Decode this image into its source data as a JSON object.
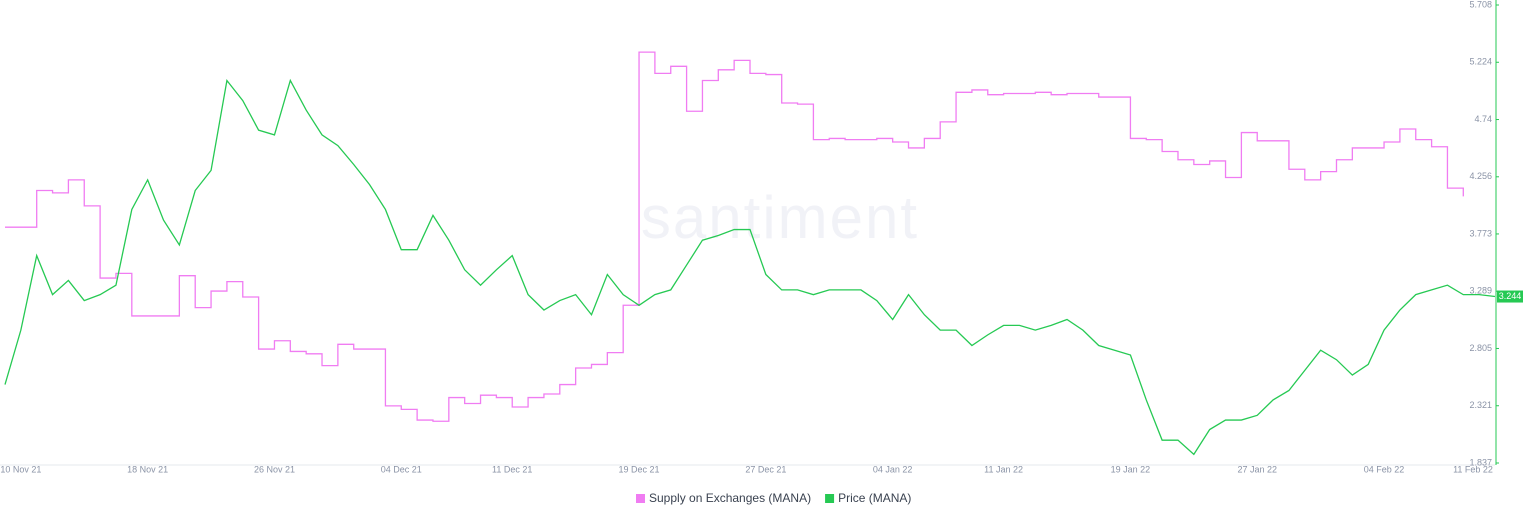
{
  "chart_data": {
    "type": "line",
    "watermark": "santiment",
    "x": [
      "09 Nov 21",
      "10 Nov 21",
      "11 Nov 21",
      "12 Nov 21",
      "13 Nov 21",
      "14 Nov 21",
      "15 Nov 21",
      "16 Nov 21",
      "17 Nov 21",
      "18 Nov 21",
      "19 Nov 21",
      "20 Nov 21",
      "21 Nov 21",
      "22 Nov 21",
      "23 Nov 21",
      "24 Nov 21",
      "25 Nov 21",
      "26 Nov 21",
      "27 Nov 21",
      "28 Nov 21",
      "29 Nov 21",
      "30 Nov 21",
      "01 Dec 21",
      "02 Dec 21",
      "03 Dec 21",
      "04 Dec 21",
      "05 Dec 21",
      "06 Dec 21",
      "07 Dec 21",
      "08 Dec 21",
      "09 Dec 21",
      "10 Dec 21",
      "11 Dec 21",
      "12 Dec 21",
      "13 Dec 21",
      "14 Dec 21",
      "15 Dec 21",
      "16 Dec 21",
      "17 Dec 21",
      "18 Dec 21",
      "19 Dec 21",
      "20 Dec 21",
      "21 Dec 21",
      "22 Dec 21",
      "23 Dec 21",
      "24 Dec 21",
      "25 Dec 21",
      "26 Dec 21",
      "27 Dec 21",
      "28 Dec 21",
      "29 Dec 21",
      "30 Dec 21",
      "31 Dec 21",
      "01 Jan 22",
      "02 Jan 22",
      "03 Jan 22",
      "04 Jan 22",
      "05 Jan 22",
      "06 Jan 22",
      "07 Jan 22",
      "08 Jan 22",
      "09 Jan 22",
      "10 Jan 22",
      "11 Jan 22",
      "12 Jan 22",
      "13 Jan 22",
      "14 Jan 22",
      "15 Jan 22",
      "16 Jan 22",
      "17 Jan 22",
      "18 Jan 22",
      "19 Jan 22",
      "20 Jan 22",
      "21 Jan 22",
      "22 Jan 22",
      "23 Jan 22",
      "24 Jan 22",
      "25 Jan 22",
      "26 Jan 22",
      "27 Jan 22",
      "28 Jan 22",
      "29 Jan 22",
      "30 Jan 22",
      "31 Jan 22",
      "01 Feb 22",
      "02 Feb 22",
      "03 Feb 22",
      "04 Feb 22",
      "05 Feb 22",
      "06 Feb 22",
      "07 Feb 22",
      "08 Feb 22",
      "09 Feb 22",
      "10 Feb 22",
      "11 Feb 22"
    ],
    "xticks": [
      "10 Nov 21",
      "18 Nov 21",
      "26 Nov 21",
      "04 Dec 21",
      "11 Dec 21",
      "19 Dec 21",
      "27 Dec 21",
      "04 Jan 22",
      "11 Jan 22",
      "19 Jan 22",
      "27 Jan 22",
      "04 Feb 22",
      "11 Feb 22"
    ],
    "ylim": [
      1.837,
      5.708
    ],
    "yticks": [
      1.837,
      2.321,
      2.805,
      3.289,
      3.773,
      4.256,
      4.74,
      5.224,
      5.708
    ],
    "series": [
      {
        "name": "Supply on Exchanges (MANA)",
        "color": "#f07cf2",
        "step": true,
        "values": [
          3.83,
          3.83,
          4.14,
          4.12,
          4.23,
          4.01,
          3.4,
          3.44,
          3.08,
          3.08,
          3.08,
          3.42,
          3.15,
          3.29,
          3.37,
          3.24,
          2.8,
          2.87,
          2.78,
          2.76,
          2.66,
          2.84,
          2.8,
          2.8,
          2.32,
          2.29,
          2.2,
          2.19,
          2.39,
          2.34,
          2.41,
          2.39,
          2.31,
          2.39,
          2.42,
          2.5,
          2.64,
          2.67,
          2.77,
          3.17,
          5.31,
          5.13,
          5.19,
          4.81,
          5.07,
          5.16,
          5.24,
          5.13,
          5.12,
          4.88,
          4.87,
          4.57,
          4.58,
          4.57,
          4.57,
          4.58,
          4.55,
          4.5,
          4.58,
          4.72,
          4.97,
          4.99,
          4.95,
          4.96,
          4.96,
          4.97,
          4.95,
          4.96,
          4.96,
          4.93,
          4.93,
          4.58,
          4.57,
          4.47,
          4.4,
          4.36,
          4.39,
          4.25,
          4.63,
          4.56,
          4.56,
          4.32,
          4.23,
          4.3,
          4.4,
          4.5,
          4.5,
          4.55,
          4.66,
          4.57,
          4.51,
          4.16,
          4.09,
          null,
          null
        ]
      },
      {
        "name": "Price (MANA)",
        "color": "#26c953",
        "values": [
          2.5,
          2.96,
          3.59,
          3.26,
          3.38,
          3.21,
          3.26,
          3.34,
          3.98,
          4.23,
          3.89,
          3.68,
          4.14,
          4.31,
          5.07,
          4.9,
          4.65,
          4.61,
          5.07,
          4.82,
          4.61,
          4.52,
          4.36,
          4.19,
          3.98,
          3.64,
          3.64,
          3.93,
          3.72,
          3.47,
          3.34,
          3.47,
          3.59,
          3.26,
          3.13,
          3.21,
          3.26,
          3.09,
          3.43,
          3.26,
          3.17,
          3.26,
          3.3,
          3.51,
          3.72,
          3.76,
          3.81,
          3.81,
          3.43,
          3.3,
          3.3,
          3.26,
          3.3,
          3.3,
          3.3,
          3.21,
          3.05,
          3.26,
          3.09,
          2.96,
          2.96,
          2.83,
          2.92,
          3.0,
          3.0,
          2.96,
          3.0,
          3.05,
          2.96,
          2.83,
          2.79,
          2.75,
          2.37,
          2.03,
          2.03,
          1.91,
          2.12,
          2.2,
          2.2,
          2.24,
          2.37,
          2.45,
          2.62,
          2.79,
          2.71,
          2.58,
          2.67,
          2.96,
          3.13,
          3.26,
          3.3,
          3.34,
          3.26,
          3.26,
          3.244
        ]
      }
    ]
  }
}
